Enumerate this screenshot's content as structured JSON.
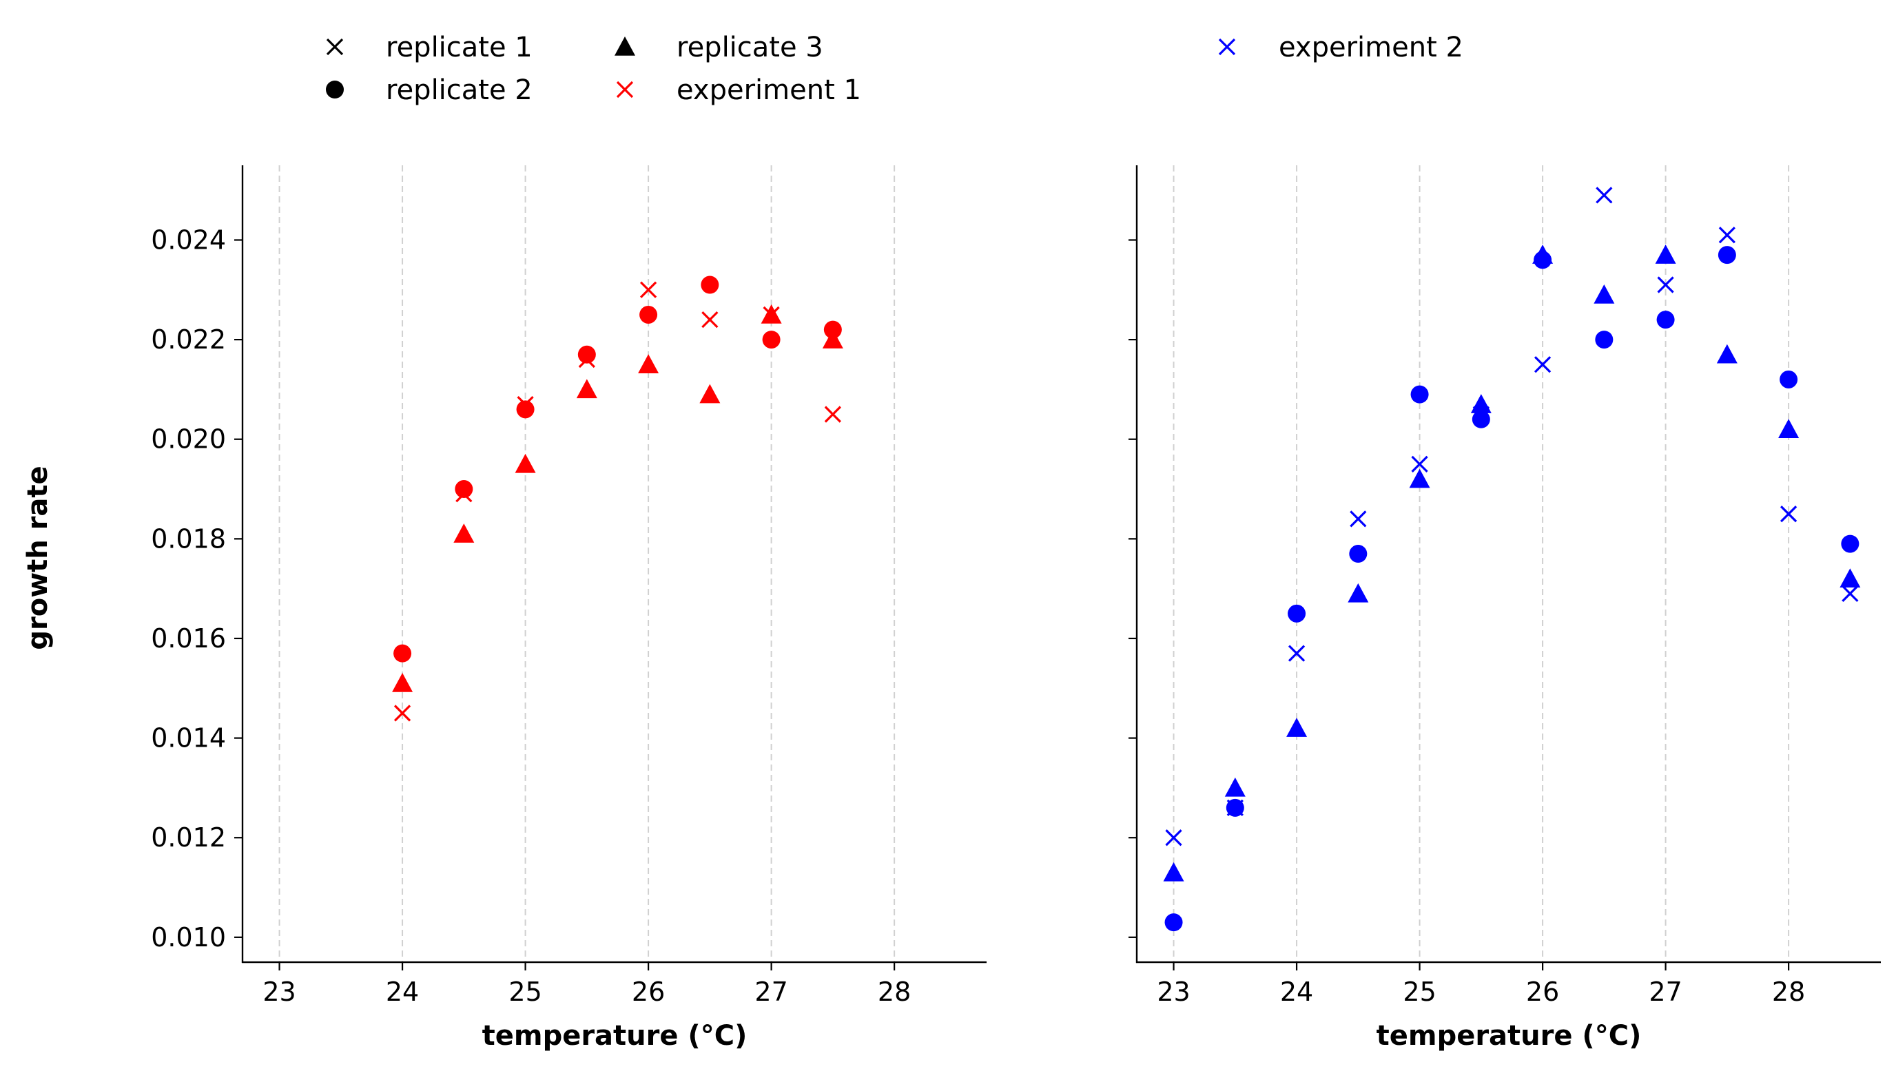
{
  "figure": {
    "ylabel": "growth rate"
  },
  "legend": {
    "entries": [
      {
        "label": "replicate 1",
        "marker": "x",
        "color": "#000000"
      },
      {
        "label": "replicate 2",
        "marker": "circle",
        "color": "#000000"
      },
      {
        "label": "replicate 3",
        "marker": "triangle",
        "color": "#000000"
      },
      {
        "label": "experiment 1",
        "marker": "x",
        "color": "#ff0000"
      },
      {
        "label": "experiment 2",
        "marker": "x",
        "color": "#0000ff"
      }
    ]
  },
  "chart_data": [
    {
      "type": "scatter",
      "xlabel": "temperature (°C)",
      "ylabel": "growth rate",
      "xlim": [
        22.7,
        28.75
      ],
      "ylim": [
        0.0095,
        0.0255
      ],
      "xticks": [
        "23",
        "24",
        "25",
        "26",
        "27",
        "28"
      ],
      "yticks": [
        "0.010",
        "0.012",
        "0.014",
        "0.016",
        "0.018",
        "0.020",
        "0.022",
        "0.024"
      ],
      "grid": "x-dashed",
      "color": "#ff0000",
      "series": [
        {
          "name": "replicate 1",
          "marker": "x",
          "x": [
            24,
            24.5,
            25,
            25.5,
            26,
            26.5,
            27,
            27.5
          ],
          "y": [
            0.0145,
            0.0189,
            0.0207,
            0.0216,
            0.023,
            0.0224,
            0.0225,
            0.0205
          ]
        },
        {
          "name": "replicate 2",
          "marker": "circle",
          "x": [
            24,
            24.5,
            25,
            25.5,
            26,
            26.5,
            27,
            27.5
          ],
          "y": [
            0.0157,
            0.019,
            0.0206,
            0.0217,
            0.0225,
            0.0231,
            0.022,
            0.0222
          ]
        },
        {
          "name": "replicate 3",
          "marker": "triangle",
          "x": [
            24,
            24.5,
            25,
            25.5,
            26,
            26.5,
            27,
            27.5
          ],
          "y": [
            0.0151,
            0.0181,
            0.0195,
            0.021,
            0.0215,
            0.0209,
            0.0225,
            0.022
          ]
        }
      ]
    },
    {
      "type": "scatter",
      "xlabel": "temperature (°C)",
      "ylabel": "",
      "xlim": [
        22.7,
        28.75
      ],
      "ylim": [
        0.0095,
        0.0255
      ],
      "xticks": [
        "23",
        "24",
        "25",
        "26",
        "27",
        "28"
      ],
      "yticks": [
        "0.010",
        "0.012",
        "0.014",
        "0.016",
        "0.018",
        "0.020",
        "0.022",
        "0.024"
      ],
      "grid": "x-dashed",
      "color": "#0000ff",
      "series": [
        {
          "name": "replicate 1",
          "marker": "x",
          "x": [
            23,
            23.5,
            24,
            24.5,
            25,
            25.5,
            26,
            26.5,
            27,
            27.5,
            28,
            28.5
          ],
          "y": [
            0.012,
            0.0126,
            0.0157,
            0.0184,
            0.0195,
            0.0205,
            0.0215,
            0.0249,
            0.0231,
            0.0241,
            0.0185,
            0.0169
          ]
        },
        {
          "name": "replicate 2",
          "marker": "circle",
          "x": [
            23,
            23.5,
            24,
            24.5,
            25,
            25.5,
            26,
            26.5,
            27,
            27.5,
            28,
            28.5
          ],
          "y": [
            0.0103,
            0.0126,
            0.0165,
            0.0177,
            0.0209,
            0.0204,
            0.0236,
            0.022,
            0.0224,
            0.0237,
            0.0212,
            0.0179
          ]
        },
        {
          "name": "replicate 3",
          "marker": "triangle",
          "x": [
            23,
            23.5,
            24,
            24.5,
            25,
            25.5,
            26,
            26.5,
            27,
            27.5,
            28,
            28.5
          ],
          "y": [
            0.0113,
            0.013,
            0.0142,
            0.0169,
            0.0192,
            0.0207,
            0.0237,
            0.0229,
            0.0237,
            0.0217,
            0.0202,
            0.0172
          ]
        }
      ]
    }
  ]
}
